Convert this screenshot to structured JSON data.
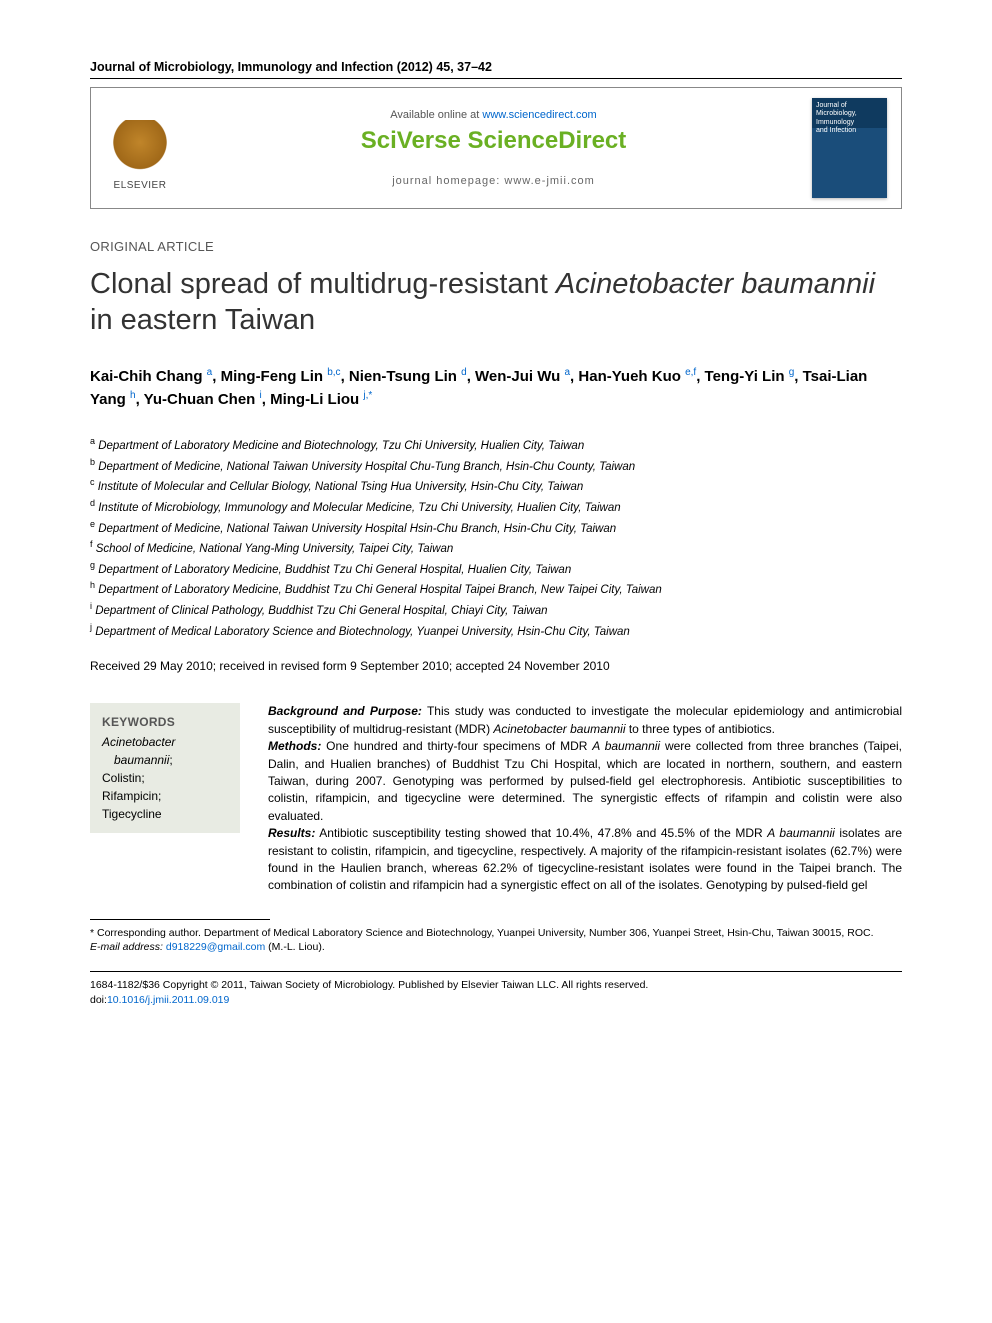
{
  "header": {
    "journal_ref": "Journal of Microbiology, Immunology and Infection (2012) 45, 37–42",
    "available_prefix": "Available online at ",
    "available_link": "www.sciencedirect.com",
    "platform_a": "SciVerse ",
    "platform_b": "ScienceDirect",
    "homepage_label": "journal homepage: ",
    "homepage_url": "www.e-jmii.com",
    "publisher": "ELSEVIER",
    "cover_line1": "Journal of",
    "cover_line2": "Microbiology,",
    "cover_line3": "Immunology",
    "cover_line4": "and Infection"
  },
  "article_type": "ORIGINAL ARTICLE",
  "title_pre": "Clonal spread of multidrug-resistant ",
  "title_italic": "Acinetobacter baumannii",
  "title_post": " in eastern Taiwan",
  "authors": [
    {
      "name": "Kai-Chih Chang",
      "aff": "a"
    },
    {
      "name": "Ming-Feng Lin",
      "aff": "b,c"
    },
    {
      "name": "Nien-Tsung Lin",
      "aff": "d"
    },
    {
      "name": "Wen-Jui Wu",
      "aff": "a"
    },
    {
      "name": "Han-Yueh Kuo",
      "aff": "e,f"
    },
    {
      "name": "Teng-Yi Lin",
      "aff": "g"
    },
    {
      "name": "Tsai-Lian Yang",
      "aff": "h"
    },
    {
      "name": "Yu-Chuan Chen",
      "aff": "i"
    },
    {
      "name": "Ming-Li Liou",
      "aff": "j,*"
    }
  ],
  "affiliations": [
    {
      "sup": "a",
      "text": "Department of Laboratory Medicine and Biotechnology, Tzu Chi University, Hualien City, Taiwan"
    },
    {
      "sup": "b",
      "text": "Department of Medicine, National Taiwan University Hospital Chu-Tung Branch, Hsin-Chu County, Taiwan"
    },
    {
      "sup": "c",
      "text": "Institute of Molecular and Cellular Biology, National Tsing Hua University, Hsin-Chu City, Taiwan"
    },
    {
      "sup": "d",
      "text": "Institute of Microbiology, Immunology and Molecular Medicine, Tzu Chi University, Hualien City, Taiwan"
    },
    {
      "sup": "e",
      "text": "Department of Medicine, National Taiwan University Hospital Hsin-Chu Branch, Hsin-Chu City, Taiwan"
    },
    {
      "sup": "f",
      "text": "School of Medicine, National Yang-Ming University, Taipei City, Taiwan"
    },
    {
      "sup": "g",
      "text": "Department of Laboratory Medicine, Buddhist Tzu Chi General Hospital, Hualien City, Taiwan"
    },
    {
      "sup": "h",
      "text": "Department of Laboratory Medicine, Buddhist Tzu Chi General Hospital Taipei Branch, New Taipei City, Taiwan"
    },
    {
      "sup": "i",
      "text": "Department of Clinical Pathology, Buddhist Tzu Chi General Hospital, Chiayi City, Taiwan"
    },
    {
      "sup": "j",
      "text": "Department of Medical Laboratory Science and Biotechnology, Yuanpei University, Hsin-Chu City, Taiwan"
    }
  ],
  "dates": "Received 29 May 2010; received in revised form 9 September 2010; accepted 24 November 2010",
  "keywords": {
    "heading": "KEYWORDS",
    "items": [
      {
        "text": "Acinetobacter",
        "italic": true,
        "suffix": ""
      },
      {
        "text": "baumannii",
        "italic": true,
        "suffix": ";",
        "indent": true
      },
      {
        "text": "Colistin;",
        "italic": false
      },
      {
        "text": "Rifampicin;",
        "italic": false
      },
      {
        "text": "Tigecycline",
        "italic": false
      }
    ]
  },
  "abstract": {
    "bg_head": "Background and Purpose:",
    "bg_1": " This study was conducted to investigate the molecular epidemiology and antimicrobial susceptibility of multidrug-resistant (MDR) ",
    "bg_it": "Acinetobacter baumannii",
    "bg_2": " to three types of antibiotics.",
    "m_head": "Methods:",
    "m_1": " One hundred and thirty-four specimens of MDR ",
    "m_it": "A baumannii",
    "m_2": " were collected from three branches (Taipei, Dalin, and Hualien branches) of Buddhist Tzu Chi Hospital, which are located in northern, southern, and eastern Taiwan, during 2007. Genotyping was performed by pulsed-field gel electrophoresis. Antibiotic susceptibilities to colistin, rifampicin, and tigecycline were determined. The synergistic effects of rifampin and colistin were also evaluated.",
    "r_head": "Results:",
    "r_1": " Antibiotic susceptibility testing showed that 10.4%, 47.8% and 45.5% of the MDR ",
    "r_it": "A baumannii",
    "r_2": " isolates are resistant to colistin, rifampicin, and tigecycline, respectively. A majority of the rifampicin-resistant isolates (62.7%) were found in the Haulien branch, whereas 62.2% of tigecycline-resistant isolates were found in the Taipei branch. The combination of colistin and rifampicin had a synergistic effect on all of the isolates. Genotyping by pulsed-field gel"
  },
  "footnote": {
    "corr": "* Corresponding author. Department of Medical Laboratory Science and Biotechnology, Yuanpei University, Number 306, Yuanpei Street, Hsin-Chu, Taiwan 30015, ROC.",
    "email_label": "E-mail address: ",
    "email": "d918229@gmail.com",
    "email_person": " (M.-L. Liou)."
  },
  "copyright": {
    "line1": "1684-1182/$36 Copyright © 2011, Taiwan Society of Microbiology. Published by Elsevier Taiwan LLC. All rights reserved.",
    "doi_prefix": "doi:",
    "doi": "10.1016/j.jmii.2011.09.019"
  }
}
